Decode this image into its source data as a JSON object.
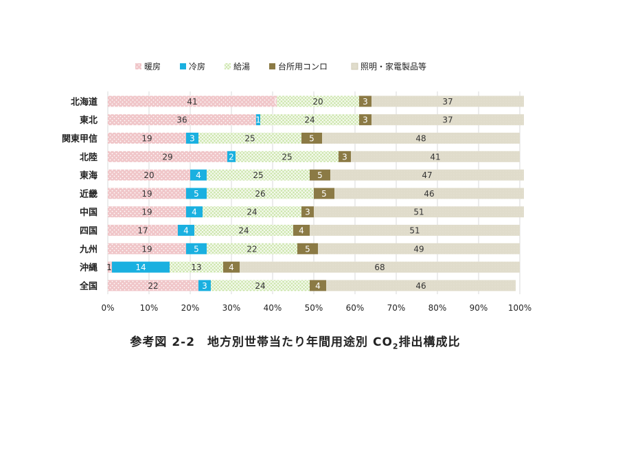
{
  "chart_data": {
    "type": "stacked-bar-horizontal",
    "categories": [
      "北海道",
      "東北",
      "関東甲信",
      "北陸",
      "東海",
      "近畿",
      "中国",
      "四国",
      "九州",
      "沖縄",
      "全国"
    ],
    "series": [
      {
        "name": "暖房",
        "color": "#e8b4b8",
        "values": [
          41,
          36,
          19,
          29,
          20,
          19,
          19,
          17,
          19,
          1,
          22
        ]
      },
      {
        "name": "冷房",
        "color": "#1ab0e0",
        "values": [
          0,
          1,
          3,
          2,
          4,
          5,
          4,
          4,
          5,
          14,
          3
        ]
      },
      {
        "name": "給湯",
        "color": "#c4e0a0",
        "values": [
          20,
          24,
          25,
          25,
          25,
          26,
          24,
          24,
          22,
          13,
          24
        ]
      },
      {
        "name": "台所用コンロ",
        "color": "#8b7a45",
        "values": [
          3,
          3,
          5,
          3,
          5,
          5,
          3,
          4,
          5,
          4,
          4
        ]
      },
      {
        "name": "照明・家電製品等",
        "color": "#ddd8c4",
        "values": [
          37,
          37,
          48,
          41,
          47,
          46,
          51,
          51,
          49,
          68,
          46
        ]
      }
    ],
    "xlim": [
      0,
      100
    ],
    "x_ticks": [
      "0%",
      "10%",
      "20%",
      "30%",
      "40%",
      "50%",
      "60%",
      "70%",
      "80%",
      "90%",
      "100%"
    ],
    "legend_position": "top",
    "grid": true,
    "title": ""
  },
  "caption": {
    "prefix": "参考図 2-2　地方別世帯当たり年間用途別 CO",
    "subscript": "2",
    "suffix": "排出構成比"
  }
}
